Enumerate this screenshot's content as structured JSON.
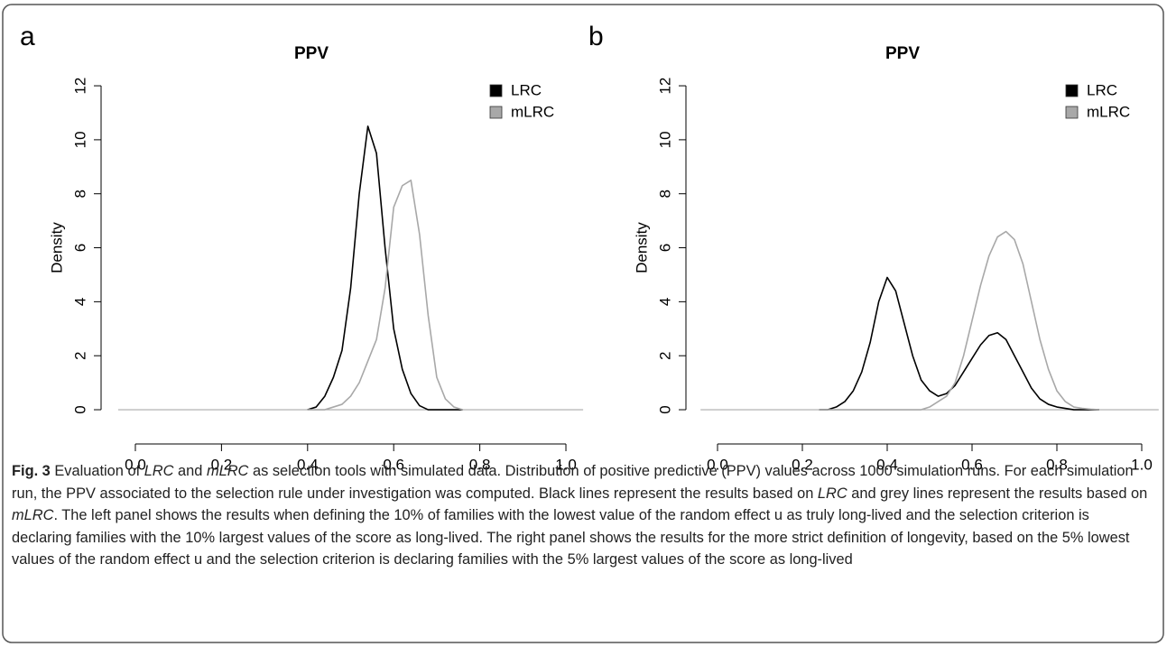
{
  "chart_data": [
    {
      "type": "line",
      "panel_label": "a",
      "title": "PPV",
      "y_label": "Density",
      "x": [
        0.4,
        0.42,
        0.44,
        0.46,
        0.48,
        0.5,
        0.52,
        0.54,
        0.56,
        0.58,
        0.6,
        0.62,
        0.64,
        0.66,
        0.68,
        0.7,
        0.72,
        0.74,
        0.76
      ],
      "series": [
        {
          "name": "LRC",
          "color": "#000000",
          "values": [
            0,
            0.1,
            0.5,
            1.2,
            2.2,
            4.5,
            8,
            10.5,
            9.5,
            6,
            3,
            1.5,
            0.6,
            0.15,
            0,
            0,
            0,
            0,
            0
          ]
        },
        {
          "name": "mLRC",
          "color": "#a8a8a8",
          "values": [
            0,
            0,
            0,
            0.1,
            0.2,
            0.5,
            1,
            1.8,
            2.6,
            4.5,
            7.5,
            8.3,
            8.5,
            6.5,
            3.5,
            1.2,
            0.4,
            0.1,
            0
          ]
        }
      ],
      "xlim": [
        -0.04,
        1.04
      ],
      "ylim": [
        -0.48,
        12.48
      ],
      "xticks": [
        {
          "value": 0,
          "label": "0.0"
        },
        0.2,
        0.4,
        0.6,
        0.8,
        {
          "value": 1,
          "label": "1.0"
        }
      ],
      "yticks": [
        0,
        2,
        4,
        6,
        8,
        10,
        12
      ],
      "legend": "topright"
    },
    {
      "type": "line",
      "panel_label": "b",
      "title": "PPV",
      "y_label": "Density",
      "x": [
        0.24,
        0.26,
        0.28,
        0.3,
        0.32,
        0.34,
        0.36,
        0.38,
        0.4,
        0.42,
        0.44,
        0.46,
        0.48,
        0.5,
        0.52,
        0.54,
        0.56,
        0.58,
        0.6,
        0.62,
        0.64,
        0.66,
        0.68,
        0.7,
        0.72,
        0.74,
        0.76,
        0.78,
        0.8,
        0.82,
        0.84,
        0.86,
        0.88,
        0.9
      ],
      "series": [
        {
          "name": "LRC",
          "color": "#000000",
          "values": [
            0,
            0,
            0.1,
            0.3,
            0.7,
            1.4,
            2.5,
            4,
            4.9,
            4.4,
            3.2,
            2,
            1.1,
            0.7,
            0.5,
            0.6,
            0.9,
            1.4,
            1.9,
            2.4,
            2.75,
            2.85,
            2.6,
            2,
            1.4,
            0.8,
            0.4,
            0.2,
            0.1,
            0.05,
            0,
            0,
            0,
            0
          ]
        },
        {
          "name": "mLRC",
          "color": "#a8a8a8",
          "values": [
            0,
            0,
            0,
            0,
            0,
            0,
            0,
            0,
            0,
            0,
            0,
            0,
            0,
            0.1,
            0.3,
            0.5,
            1,
            2,
            3.3,
            4.6,
            5.7,
            6.4,
            6.6,
            6.3,
            5.4,
            4,
            2.6,
            1.5,
            0.7,
            0.3,
            0.1,
            0.05,
            0.02,
            0
          ]
        }
      ],
      "xlim": [
        -0.04,
        1.04
      ],
      "ylim": [
        -0.48,
        12.48
      ],
      "xticks": [
        {
          "value": 0,
          "label": "0.0"
        },
        0.2,
        0.4,
        0.6,
        0.8,
        {
          "value": 1,
          "label": "1.0"
        }
      ],
      "yticks": [
        0,
        2,
        4,
        6,
        8,
        10,
        12
      ],
      "legend": "topright"
    }
  ],
  "caption": [
    {
      "text": "Fig. 3",
      "style": "bold"
    },
    {
      "text": " Evaluation of ",
      "style": "normal"
    },
    {
      "text": "LRC",
      "style": "italic"
    },
    {
      "text": " and ",
      "style": "normal"
    },
    {
      "text": "mLRC",
      "style": "italic"
    },
    {
      "text": " as selection tools with simulated data. Distribution of positive predictive (PPV) values across 1000 simulation runs. For each simulation run, the PPV associated to the selection rule under investigation was computed. Black lines represent the results based on ",
      "style": "normal"
    },
    {
      "text": "LRC",
      "style": "italic"
    },
    {
      "text": " and grey lines represent the results based on ",
      "style": "normal"
    },
    {
      "text": "mLRC",
      "style": "italic"
    },
    {
      "text": ". The left panel shows the results when defining the 10% of families with the lowest value of the random effect u as truly long-lived and the selection criterion is declaring families with the 10% largest values of the score as long-lived. The right panel shows the results for the more strict definition of longevity, based on the 5% lowest values of the random effect u and the selection criterion is declaring families with the 5% largest values of the score as long-lived",
      "style": "normal"
    }
  ]
}
